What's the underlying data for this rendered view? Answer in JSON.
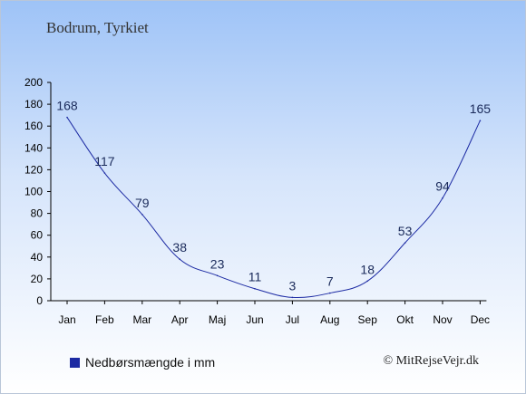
{
  "title": "Bodrum, Tyrkiet",
  "legend_label": "Nedbørsmængde i mm",
  "credit": "© MitRejseVejr.dk",
  "colors": {
    "series": "#1c2aa3",
    "axis": "#000000",
    "label": "#1a2a5a"
  },
  "chart_data": {
    "type": "line",
    "categories": [
      "Jan",
      "Feb",
      "Mar",
      "Apr",
      "Maj",
      "Jun",
      "Jul",
      "Aug",
      "Sep",
      "Okt",
      "Nov",
      "Dec"
    ],
    "series": [
      {
        "name": "Nedbørsmængde i mm",
        "values": [
          168,
          117,
          79,
          38,
          23,
          11,
          3,
          7,
          18,
          53,
          94,
          165
        ]
      }
    ],
    "data_labels": [
      "168",
      "117",
      "79",
      "38",
      "23",
      "11",
      "3",
      "7",
      "18",
      "53",
      "94",
      "165"
    ],
    "yticks": [
      0,
      20,
      40,
      60,
      80,
      100,
      120,
      140,
      160,
      180,
      200
    ],
    "ylim": [
      0,
      200
    ],
    "grid": false,
    "legend_position": "bottom-left"
  }
}
